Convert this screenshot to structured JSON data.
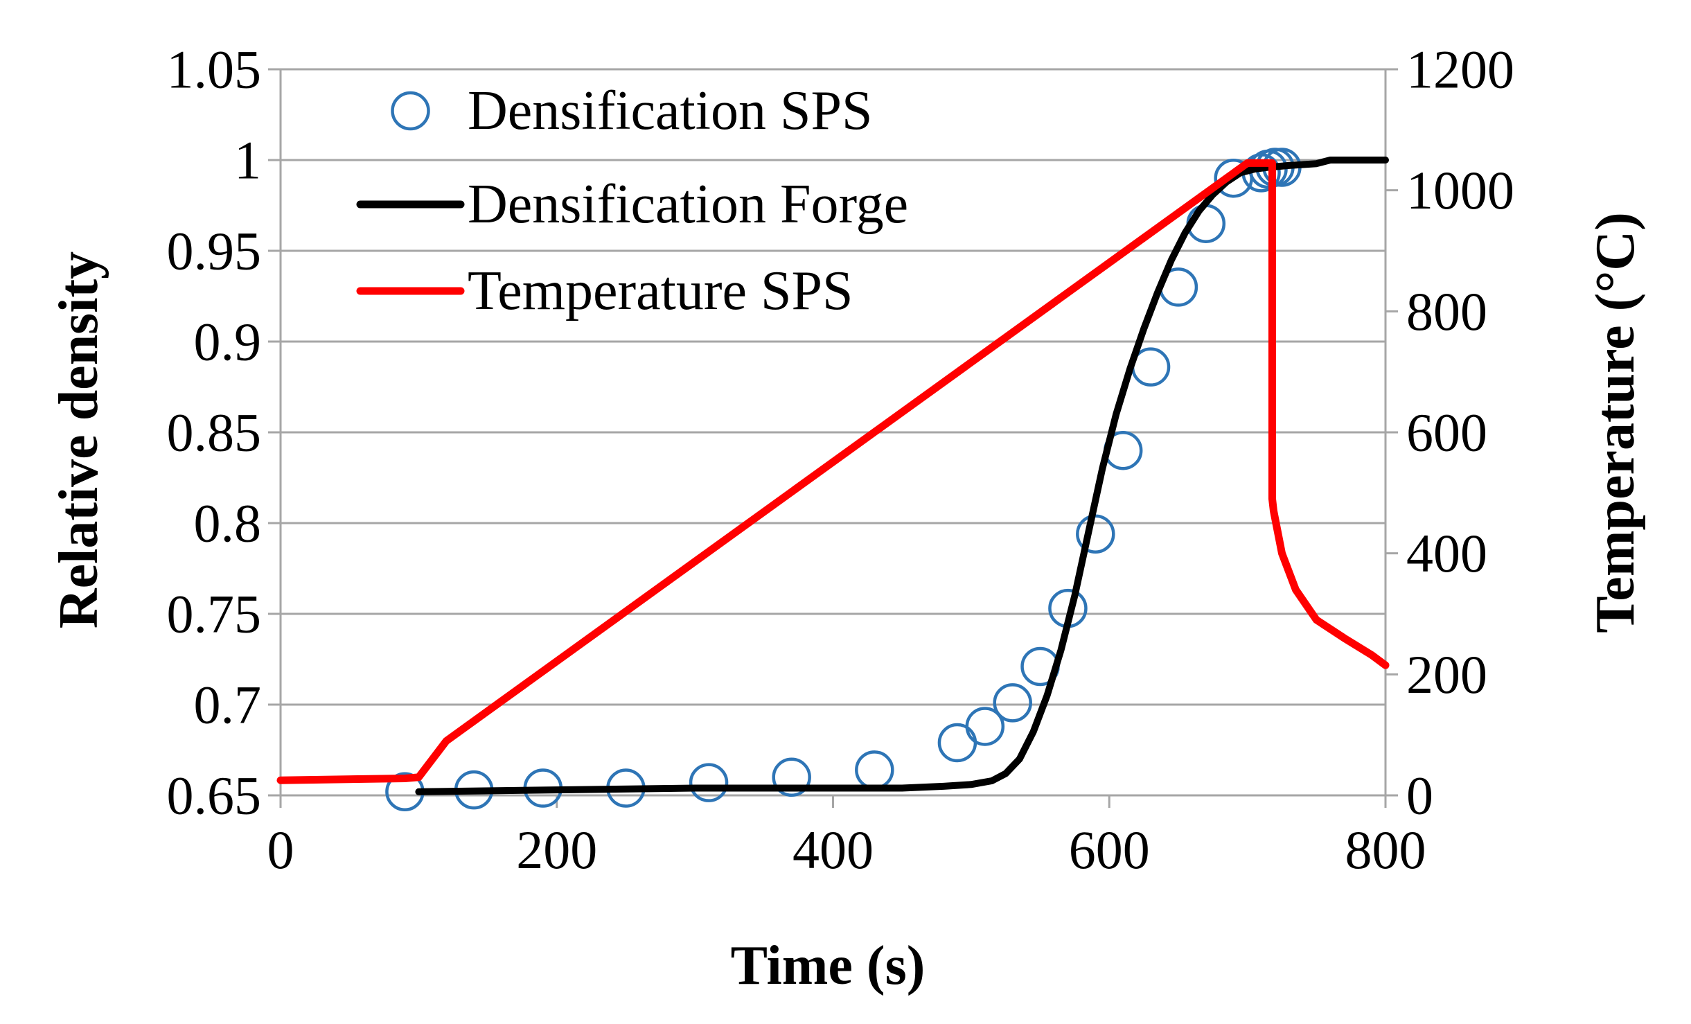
{
  "chart_data": {
    "type": "line",
    "xlabel": "Time (s)",
    "ylabel": "Relative density",
    "y2label": "Temperature (°C)",
    "xlim": [
      0,
      800
    ],
    "ylim": [
      0.65,
      1.05
    ],
    "y2lim": [
      0,
      1200
    ],
    "x_ticks": [
      0,
      200,
      400,
      600,
      800
    ],
    "y_ticks": [
      0.65,
      0.7,
      0.75,
      0.8,
      0.85,
      0.9,
      0.95,
      1,
      1.05
    ],
    "y_tick_labels": [
      "0.65",
      "0.7",
      "0.75",
      "0.8",
      "0.85",
      "0.9",
      "0.95",
      "1",
      "1.05"
    ],
    "y2_ticks": [
      0,
      200,
      400,
      600,
      800,
      1000,
      1200
    ],
    "grid": "horizontal",
    "legend_position": "top-left",
    "series": [
      {
        "name": "Densification SPS",
        "axis": "left",
        "style": "markers",
        "color": "#2E75B6",
        "x": [
          90,
          140,
          190,
          250,
          310,
          370,
          430,
          490,
          510,
          530,
          550,
          570,
          590,
          610,
          630,
          650,
          670,
          690,
          710,
          715,
          720,
          725
        ],
        "y": [
          0.652,
          0.653,
          0.654,
          0.654,
          0.657,
          0.66,
          0.664,
          0.679,
          0.688,
          0.701,
          0.721,
          0.753,
          0.794,
          0.84,
          0.886,
          0.93,
          0.965,
          0.99,
          0.993,
          0.995,
          0.996,
          0.996
        ]
      },
      {
        "name": "Densification Forge",
        "axis": "left",
        "style": "line",
        "color": "#000000",
        "x": [
          100,
          200,
          300,
          400,
          450,
          480,
          500,
          515,
          525,
          535,
          545,
          555,
          565,
          575,
          585,
          595,
          605,
          615,
          625,
          635,
          645,
          655,
          665,
          675,
          685,
          695,
          705,
          715,
          730,
          750,
          760,
          770,
          800
        ],
        "y": [
          0.652,
          0.653,
          0.654,
          0.654,
          0.654,
          0.655,
          0.656,
          0.658,
          0.662,
          0.67,
          0.685,
          0.705,
          0.73,
          0.76,
          0.795,
          0.83,
          0.86,
          0.885,
          0.907,
          0.927,
          0.945,
          0.96,
          0.972,
          0.981,
          0.988,
          0.993,
          0.995,
          0.996,
          0.997,
          0.998,
          1.0,
          1.0,
          1.0
        ]
      },
      {
        "name": "Temperature SPS",
        "axis": "right",
        "style": "line",
        "color": "#FF0000",
        "x": [
          0,
          90,
          100,
          120,
          700,
          718,
          718,
          719,
          725,
          735,
          750,
          770,
          790,
          800
        ],
        "y": [
          25,
          28,
          30,
          90,
          1045,
          1045,
          490,
          470,
          400,
          340,
          290,
          260,
          232,
          215
        ]
      }
    ]
  }
}
